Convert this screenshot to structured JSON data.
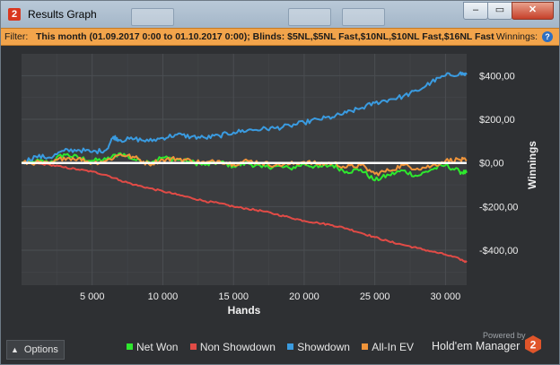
{
  "window": {
    "title": "Results Graph",
    "app_icon_text": "2",
    "buttons": {
      "minimize": "–",
      "maximize": "▭",
      "close": "✕"
    }
  },
  "filter": {
    "label": "Filter:",
    "text": "This month (01.09.2017 0:00 to 01.10.2017 0:00); Blinds: $5NL,$5NL Fast,$10NL,$10NL Fast,$16NL Fast",
    "right_label": "Winnings:",
    "help_icon": "?"
  },
  "options_button": {
    "label": "Options",
    "icon": "chevron-up-icon"
  },
  "branding": {
    "powered_by": "Powered by",
    "name": "Hold'em Manager",
    "logo_text": "2"
  },
  "colors": {
    "background": "#2e3033",
    "plot_background": "#3b3d40",
    "grid": "#4b4e52",
    "net_won": "#2ee82e",
    "non_showdown": "#e14b46",
    "showdown": "#3a9be0",
    "all_in_ev": "#f0943a",
    "zero_line": "#ffffff",
    "filter_bar": "#f2a44b"
  },
  "chart_data": {
    "type": "line",
    "xlabel": "Hands",
    "ylabel": "Winnings",
    "xlim": [
      0,
      31500
    ],
    "ylim": [
      -560,
      500
    ],
    "x_ticks": [
      5000,
      10000,
      15000,
      20000,
      25000,
      30000
    ],
    "x_tick_labels": [
      "5 000",
      "10 000",
      "15 000",
      "20 000",
      "25 000",
      "30 000"
    ],
    "y_ticks": [
      400,
      200,
      0,
      -200,
      -400
    ],
    "y_tick_labels": [
      "$400,00",
      "$200,00",
      "$0,00",
      "-$200,00",
      "-$400,00"
    ],
    "grid": true,
    "zero_line": true,
    "legend_position": "bottom",
    "series": [
      {
        "name": "Net Won",
        "color": "#2ee82e",
        "points": [
          [
            0,
            0
          ],
          [
            1000,
            8
          ],
          [
            2000,
            2
          ],
          [
            3000,
            40
          ],
          [
            4000,
            25
          ],
          [
            5000,
            10
          ],
          [
            6000,
            15
          ],
          [
            7000,
            45
          ],
          [
            8000,
            15
          ],
          [
            9000,
            5
          ],
          [
            10000,
            25
          ],
          [
            11000,
            15
          ],
          [
            12000,
            5
          ],
          [
            13000,
            -10
          ],
          [
            14000,
            5
          ],
          [
            15000,
            -15
          ],
          [
            16000,
            0
          ],
          [
            17000,
            -20
          ],
          [
            18000,
            -15
          ],
          [
            19000,
            -25
          ],
          [
            20000,
            -5
          ],
          [
            21000,
            -20
          ],
          [
            22000,
            -10
          ],
          [
            23000,
            -40
          ],
          [
            24000,
            -30
          ],
          [
            25000,
            -80
          ],
          [
            26000,
            -55
          ],
          [
            27000,
            -35
          ],
          [
            28000,
            -60
          ],
          [
            29000,
            -30
          ],
          [
            30000,
            -10
          ],
          [
            31000,
            -40
          ],
          [
            31500,
            -45
          ]
        ]
      },
      {
        "name": "Non Showdown",
        "color": "#e14b46",
        "points": [
          [
            0,
            0
          ],
          [
            1000,
            -3
          ],
          [
            2000,
            -8
          ],
          [
            3000,
            -20
          ],
          [
            4000,
            -30
          ],
          [
            5000,
            -40
          ],
          [
            6000,
            -55
          ],
          [
            7000,
            -80
          ],
          [
            8000,
            -100
          ],
          [
            9000,
            -115
          ],
          [
            10000,
            -130
          ],
          [
            11000,
            -145
          ],
          [
            12000,
            -160
          ],
          [
            13000,
            -175
          ],
          [
            14000,
            -185
          ],
          [
            15000,
            -200
          ],
          [
            16000,
            -210
          ],
          [
            17000,
            -220
          ],
          [
            18000,
            -235
          ],
          [
            19000,
            -250
          ],
          [
            20000,
            -265
          ],
          [
            21000,
            -275
          ],
          [
            22000,
            -285
          ],
          [
            23000,
            -300
          ],
          [
            24000,
            -320
          ],
          [
            25000,
            -340
          ],
          [
            26000,
            -360
          ],
          [
            27000,
            -375
          ],
          [
            28000,
            -390
          ],
          [
            29000,
            -405
          ],
          [
            30000,
            -420
          ],
          [
            31000,
            -440
          ],
          [
            31500,
            -455
          ]
        ]
      },
      {
        "name": "Showdown",
        "color": "#3a9be0",
        "points": [
          [
            0,
            0
          ],
          [
            1000,
            30
          ],
          [
            2000,
            25
          ],
          [
            3000,
            55
          ],
          [
            4000,
            60
          ],
          [
            5000,
            50
          ],
          [
            6000,
            60
          ],
          [
            6500,
            120
          ],
          [
            7000,
            105
          ],
          [
            8000,
            110
          ],
          [
            9000,
            100
          ],
          [
            10000,
            115
          ],
          [
            11000,
            130
          ],
          [
            12000,
            120
          ],
          [
            13000,
            115
          ],
          [
            14000,
            125
          ],
          [
            15000,
            140
          ],
          [
            16000,
            150
          ],
          [
            17000,
            155
          ],
          [
            18000,
            160
          ],
          [
            19000,
            170
          ],
          [
            20000,
            185
          ],
          [
            21000,
            200
          ],
          [
            22000,
            210
          ],
          [
            23000,
            230
          ],
          [
            24000,
            250
          ],
          [
            25000,
            275
          ],
          [
            26000,
            290
          ],
          [
            27000,
            305
          ],
          [
            28000,
            330
          ],
          [
            29000,
            370
          ],
          [
            30000,
            400
          ],
          [
            31000,
            410
          ],
          [
            31500,
            405
          ]
        ]
      },
      {
        "name": "All-In EV",
        "color": "#f0943a",
        "points": [
          [
            0,
            0
          ],
          [
            1000,
            2
          ],
          [
            2000,
            -5
          ],
          [
            3000,
            25
          ],
          [
            4000,
            20
          ],
          [
            5000,
            0
          ],
          [
            6000,
            10
          ],
          [
            7000,
            40
          ],
          [
            8000,
            25
          ],
          [
            9000,
            -5
          ],
          [
            10000,
            15
          ],
          [
            11000,
            20
          ],
          [
            12000,
            10
          ],
          [
            13000,
            0
          ],
          [
            14000,
            10
          ],
          [
            15000,
            -5
          ],
          [
            16000,
            10
          ],
          [
            17000,
            0
          ],
          [
            18000,
            -10
          ],
          [
            19000,
            -5
          ],
          [
            20000,
            5
          ],
          [
            21000,
            -5
          ],
          [
            22000,
            0
          ],
          [
            23000,
            -20
          ],
          [
            24000,
            -10
          ],
          [
            25000,
            -50
          ],
          [
            26000,
            -35
          ],
          [
            27000,
            -10
          ],
          [
            28000,
            -25
          ],
          [
            29000,
            -15
          ],
          [
            30000,
            10
          ],
          [
            31000,
            15
          ],
          [
            31500,
            10
          ]
        ]
      }
    ]
  }
}
